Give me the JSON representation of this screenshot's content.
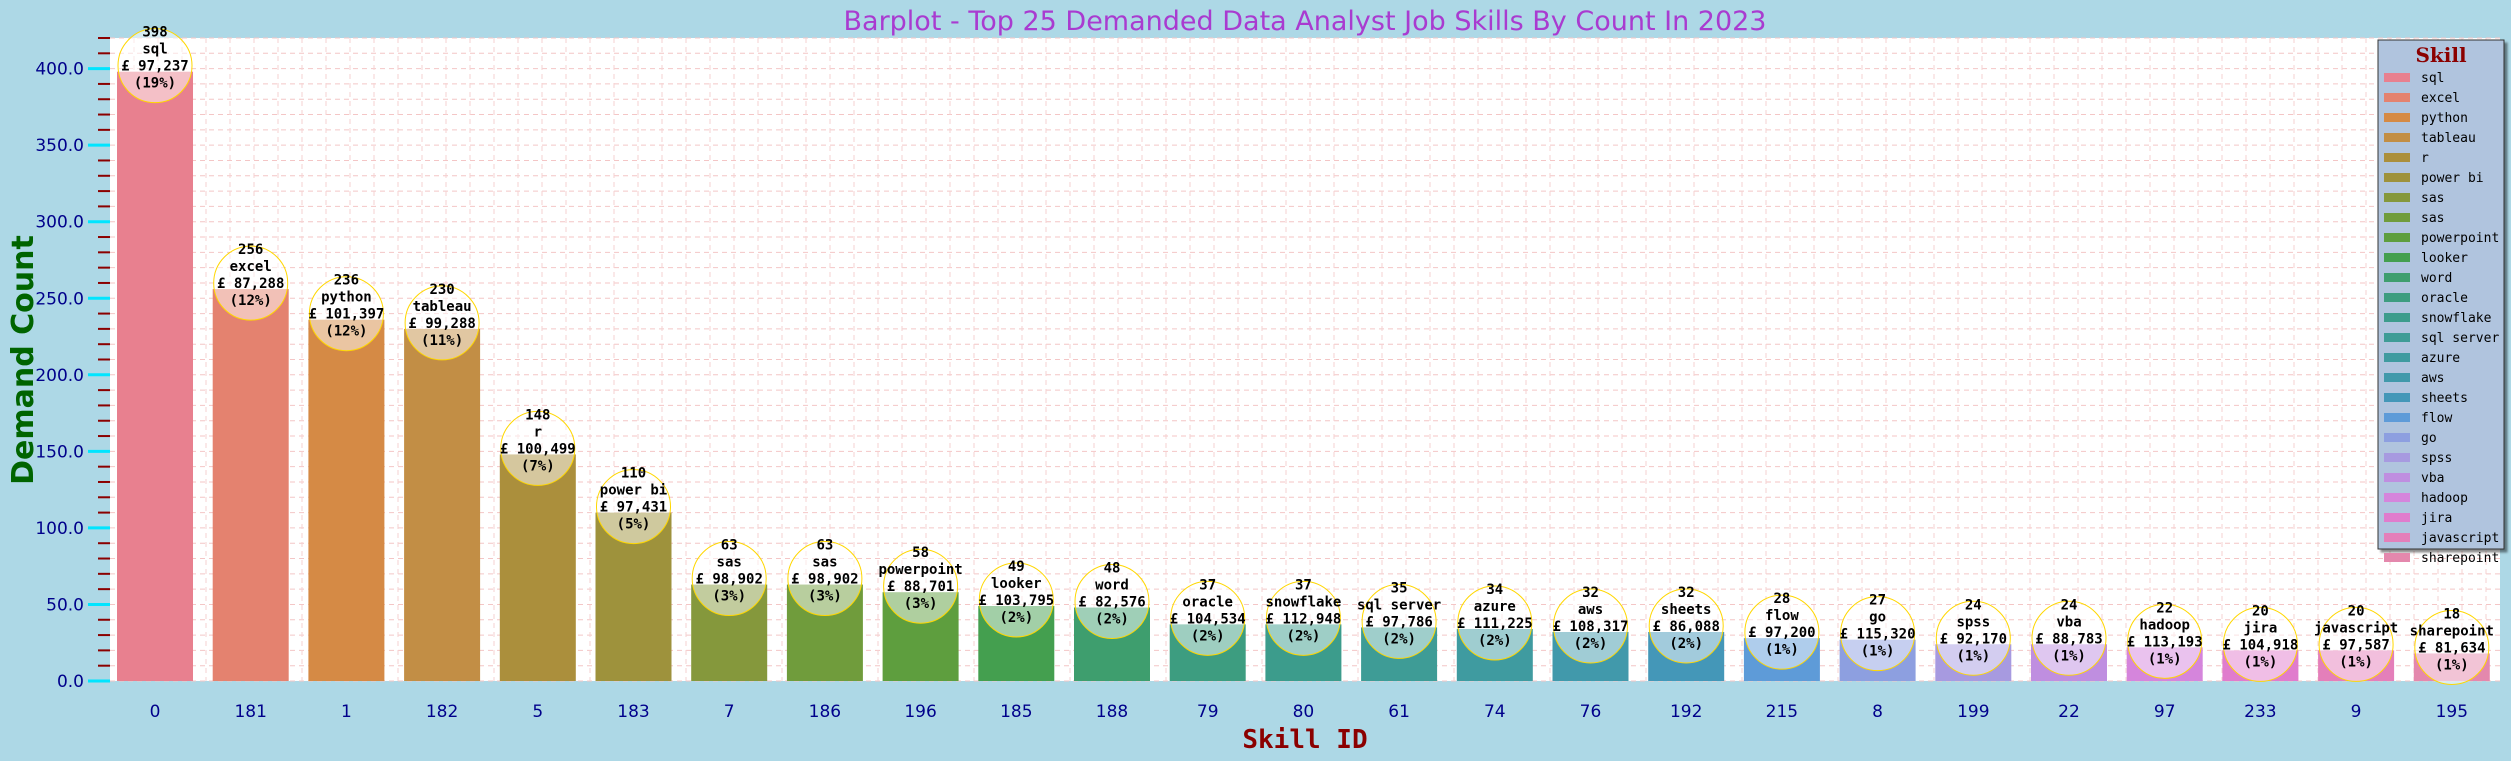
{
  "chart_data": {
    "type": "bar",
    "title": "Barplot - Top 25 Demanded Data Analyst Job Skills By Count In 2023",
    "xlabel": "Skill ID",
    "ylabel": "Demand Count",
    "ylim": [
      0,
      420
    ],
    "yticks": [
      "0.0",
      "50.0",
      "100.0",
      "150.0",
      "200.0",
      "250.0",
      "300.0",
      "350.0",
      "400.0"
    ],
    "grid": true,
    "legend": {
      "title": "Skill",
      "placement": "top-right"
    },
    "currency_symbol": "£",
    "bars": [
      {
        "id": "0",
        "skill": "sql",
        "count": 398,
        "salary": "£ 97,237",
        "pct": "(19%)",
        "color": "#e8808f"
      },
      {
        "id": "181",
        "skill": "excel",
        "count": 256,
        "salary": "£ 87,288",
        "pct": "(12%)",
        "color": "#e4826f"
      },
      {
        "id": "1",
        "skill": "python",
        "count": 236,
        "salary": "£ 101,397",
        "pct": "(12%)",
        "color": "#d58a45"
      },
      {
        "id": "182",
        "skill": "tableau",
        "count": 230,
        "salary": "£ 99,288",
        "pct": "(11%)",
        "color": "#c28e45"
      },
      {
        "id": "5",
        "skill": "r",
        "count": 148,
        "salary": "£ 100,499",
        "pct": "(7%)",
        "color": "#ab8f3c"
      },
      {
        "id": "183",
        "skill": "power bi",
        "count": 110,
        "salary": "£ 97,431",
        "pct": "(5%)",
        "color": "#9e923c"
      },
      {
        "id": "7",
        "skill": "sas",
        "count": 63,
        "salary": "£ 98,902",
        "pct": "(3%)",
        "color": "#85983c"
      },
      {
        "id": "186",
        "skill": "sas",
        "count": 63,
        "salary": "£ 98,902",
        "pct": "(3%)",
        "color": "#709c3c"
      },
      {
        "id": "196",
        "skill": "powerpoint",
        "count": 58,
        "salary": "£ 88,701",
        "pct": "(3%)",
        "color": "#5e9e3e"
      },
      {
        "id": "185",
        "skill": "looker",
        "count": 49,
        "salary": "£ 103,795",
        "pct": "(2%)",
        "color": "#449f4f"
      },
      {
        "id": "188",
        "skill": "word",
        "count": 48,
        "salary": "£ 82,576",
        "pct": "(2%)",
        "color": "#3e9e6e"
      },
      {
        "id": "79",
        "skill": "oracle",
        "count": 37,
        "salary": "£ 104,534",
        "pct": "(2%)",
        "color": "#3d9d80"
      },
      {
        "id": "80",
        "skill": "snowflake",
        "count": 37,
        "salary": "£ 112,948",
        "pct": "(2%)",
        "color": "#3c9c8c"
      },
      {
        "id": "61",
        "skill": "sql server",
        "count": 35,
        "salary": "£ 97,786",
        "pct": "(2%)",
        "color": "#3e9c96"
      },
      {
        "id": "74",
        "skill": "azure",
        "count": 34,
        "salary": "£ 111,225",
        "pct": "(2%)",
        "color": "#3f9ba0"
      },
      {
        "id": "76",
        "skill": "aws",
        "count": 32,
        "salary": "£ 108,317",
        "pct": "(2%)",
        "color": "#4199ab"
      },
      {
        "id": "192",
        "skill": "sheets",
        "count": 32,
        "salary": "£ 86,088",
        "pct": "(2%)",
        "color": "#4497b8"
      },
      {
        "id": "215",
        "skill": "flow",
        "count": 28,
        "salary": "£ 97,200",
        "pct": "(1%)",
        "color": "#5e9bd8"
      },
      {
        "id": "8",
        "skill": "go",
        "count": 27,
        "salary": "£ 115,320",
        "pct": "(1%)",
        "color": "#8d9fe0"
      },
      {
        "id": "199",
        "skill": "spss",
        "count": 24,
        "salary": "£ 92,170",
        "pct": "(1%)",
        "color": "#a79ae0"
      },
      {
        "id": "22",
        "skill": "vba",
        "count": 24,
        "salary": "£ 88,783",
        "pct": "(1%)",
        "color": "#bf8ee0"
      },
      {
        "id": "97",
        "skill": "hadoop",
        "count": 22,
        "salary": "£ 113,193",
        "pct": "(1%)",
        "color": "#d585dc"
      },
      {
        "id": "233",
        "skill": "jira",
        "count": 20,
        "salary": "£ 104,918",
        "pct": "(1%)",
        "color": "#e07ccd"
      },
      {
        "id": "9",
        "skill": "javascript",
        "count": 20,
        "salary": "£ 97,587",
        "pct": "(1%)",
        "color": "#e47fba"
      },
      {
        "id": "195",
        "skill": "sharepoint",
        "count": 18,
        "salary": "£ 81,634",
        "pct": "(1%)",
        "color": "#e488ad"
      }
    ]
  }
}
